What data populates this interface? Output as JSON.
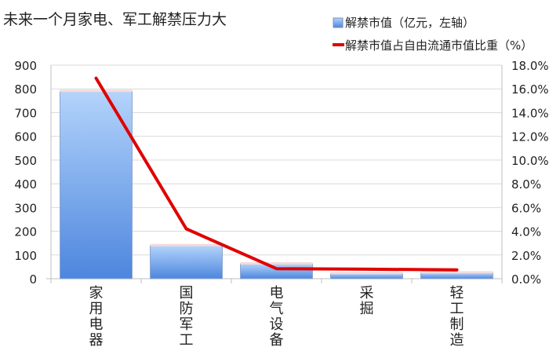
{
  "chart_data": {
    "type": "bar",
    "title": "未来一个月家电、军工解禁压力大",
    "categories": [
      "家用电器",
      "国防军工",
      "电气设备",
      "采掘",
      "轻工制造"
    ],
    "series": [
      {
        "name": "解禁市值（亿元，左轴）",
        "type": "bar",
        "axis": "left",
        "color": "#5b8fe0",
        "values": [
          790,
          140,
          63,
          22,
          25
        ]
      },
      {
        "name": "解禁市值占自由流通市值比重（%）",
        "type": "line",
        "axis": "right",
        "color": "#e00000",
        "values": [
          16.9,
          4.2,
          0.85,
          0.8,
          0.75
        ]
      }
    ],
    "y_left": {
      "min": 0,
      "max": 900,
      "ticks": [
        0,
        100,
        200,
        300,
        400,
        500,
        600,
        700,
        800,
        900
      ]
    },
    "y_right": {
      "min": 0,
      "max": 18,
      "ticks": [
        "0.0%",
        "2.0%",
        "4.0%",
        "6.0%",
        "8.0%",
        "10.0%",
        "12.0%",
        "14.0%",
        "16.0%",
        "18.0%"
      ]
    },
    "grid": true,
    "legend_position": "top-right"
  }
}
